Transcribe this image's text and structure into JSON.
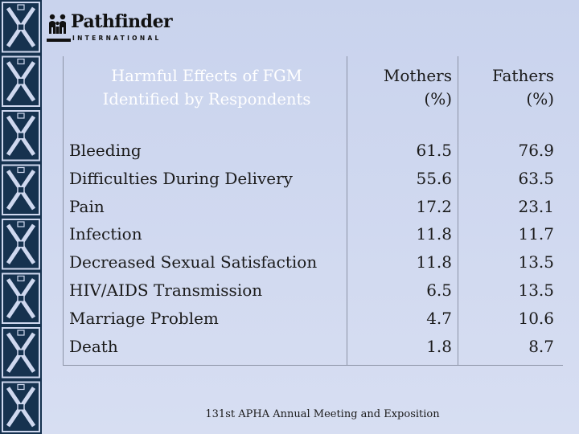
{
  "logo": {
    "name": "Pathfinder",
    "subtitle": "INTERNATIONAL"
  },
  "table": {
    "headers": {
      "effects": [
        "Harmful Effects of FGM",
        "Identified by Respondents"
      ],
      "mothers": [
        "Mothers",
        "(%)"
      ],
      "fathers": [
        "Fathers",
        "(%)"
      ]
    },
    "rows": [
      {
        "effect": "Bleeding",
        "mothers": "61.5",
        "fathers": "76.9"
      },
      {
        "effect": "Difficulties During Delivery",
        "mothers": "55.6",
        "fathers": "63.5"
      },
      {
        "effect": "Pain",
        "mothers": "17.2",
        "fathers": "23.1"
      },
      {
        "effect": "Infection",
        "mothers": "11.8",
        "fathers": "11.7"
      },
      {
        "effect": "Decreased Sexual Satisfaction",
        "mothers": "11.8",
        "fathers": "13.5"
      },
      {
        "effect": "HIV/AIDS Transmission",
        "mothers": "6.5",
        "fathers": "13.5"
      },
      {
        "effect": "Marriage Problem",
        "mothers": "4.7",
        "fathers": "10.6"
      },
      {
        "effect": "Death",
        "mothers": "1.8",
        "fathers": "8.7"
      }
    ]
  },
  "footer": "131st APHA Annual Meeting and Exposition",
  "colors": {
    "background": "#cfd8ef",
    "border_dark": "#16324f",
    "header_text": "#ffffff",
    "body_text": "#1a1a1a"
  }
}
